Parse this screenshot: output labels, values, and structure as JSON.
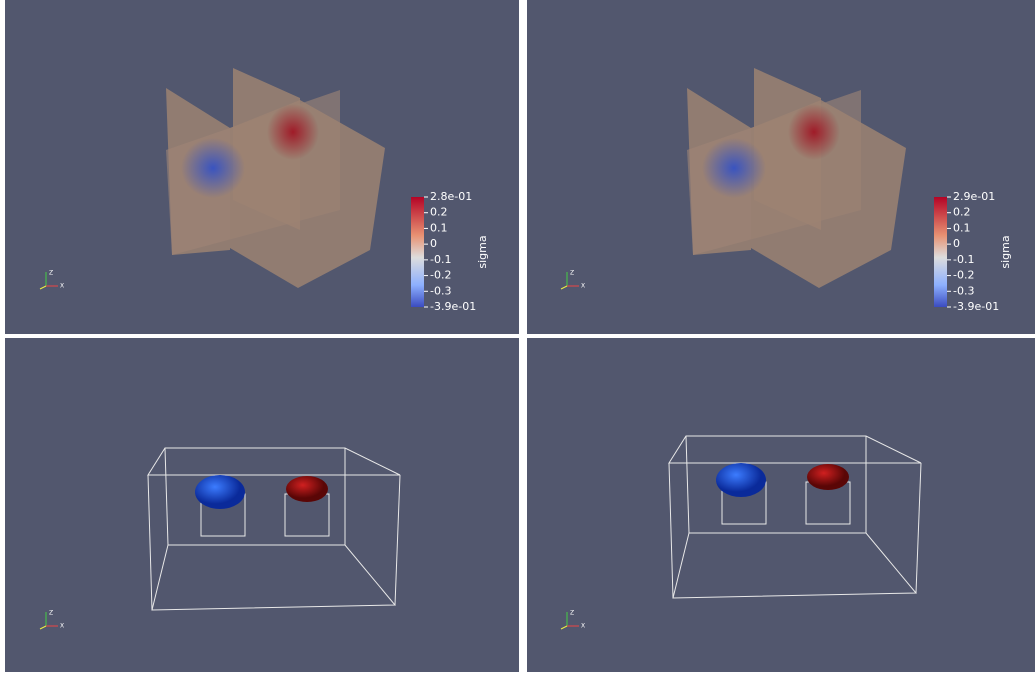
{
  "panels": [
    {
      "colorbar": {
        "title": "sigma",
        "labels": [
          "2.8e-01",
          "0.2",
          "0.1",
          "0",
          "-0.1",
          "-0.2",
          "-0.3",
          "-3.9e-01"
        ]
      },
      "axes": [
        "Z",
        "X"
      ]
    },
    {
      "colorbar": {
        "title": "sigma",
        "labels": [
          "2.9e-01",
          "0.2",
          "0.1",
          "0",
          "-0.1",
          "-0.2",
          "-0.3",
          "-3.9e-01"
        ]
      },
      "axes": [
        "Z",
        "X"
      ]
    },
    {
      "axes": [
        "Z",
        "X"
      ]
    },
    {
      "axes": [
        "Z",
        "X"
      ]
    }
  ]
}
